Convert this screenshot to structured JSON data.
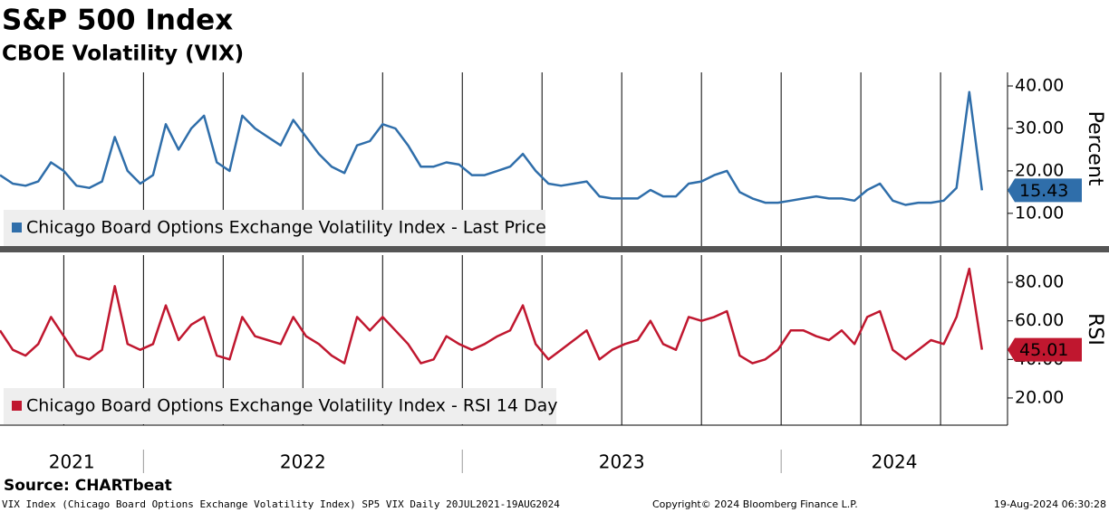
{
  "header": {
    "title": "S&P 500 Index",
    "subtitle": "CBOE Volatility (VIX)"
  },
  "chart_data": [
    {
      "type": "line",
      "y_label": "Percent",
      "grid": true,
      "xlim": [
        2021.55,
        2024.71
      ],
      "ylim": [
        2.3,
        43.2
      ],
      "yticks": [
        {
          "value": 10,
          "label": "10.00"
        },
        {
          "value": 20,
          "label": "20.00"
        },
        {
          "value": 30,
          "label": "30.00"
        },
        {
          "value": 40,
          "label": "40.00"
        }
      ],
      "x": [
        2021.55,
        2021.59,
        2021.63,
        2021.67,
        2021.71,
        2021.75,
        2021.79,
        2021.83,
        2021.87,
        2021.91,
        2021.95,
        2021.99,
        2022.03,
        2022.07,
        2022.11,
        2022.15,
        2022.19,
        2022.23,
        2022.27,
        2022.31,
        2022.35,
        2022.39,
        2022.43,
        2022.47,
        2022.51,
        2022.55,
        2022.59,
        2022.63,
        2022.67,
        2022.71,
        2022.75,
        2022.79,
        2022.83,
        2022.87,
        2022.91,
        2022.95,
        2022.99,
        2023.03,
        2023.07,
        2023.11,
        2023.15,
        2023.19,
        2023.23,
        2023.27,
        2023.31,
        2023.35,
        2023.39,
        2023.43,
        2023.47,
        2023.51,
        2023.55,
        2023.59,
        2023.63,
        2023.67,
        2023.71,
        2023.75,
        2023.79,
        2023.83,
        2023.87,
        2023.91,
        2023.95,
        2023.99,
        2024.03,
        2024.07,
        2024.11,
        2024.15,
        2024.19,
        2024.23,
        2024.27,
        2024.31,
        2024.35,
        2024.39,
        2024.43,
        2024.47,
        2024.51,
        2024.55,
        2024.59,
        2024.63
      ],
      "series": [
        {
          "name": "Chicago Board Options Exchange Volatility Index - Last Price",
          "color": "#2f6eaa",
          "values": [
            19,
            17,
            16.5,
            17.5,
            22,
            20,
            16.5,
            16,
            17.5,
            28,
            20,
            17,
            19,
            31,
            25,
            30,
            33,
            22,
            20,
            33,
            30,
            28,
            26,
            32,
            28,
            24,
            21,
            19.5,
            26,
            27,
            31,
            30,
            26,
            21,
            21,
            22,
            21.5,
            19,
            19,
            20,
            21,
            24,
            20,
            17,
            16.5,
            17,
            17.5,
            14,
            13.5,
            13.5,
            13.5,
            15.5,
            14,
            14,
            17,
            17.5,
            19,
            20,
            15,
            13.5,
            12.5,
            12.5,
            13,
            13.5,
            14,
            13.5,
            13.5,
            13,
            15.5,
            17,
            13,
            12,
            12.5,
            12.5,
            13,
            16,
            38.57,
            15.43
          ]
        }
      ]
    },
    {
      "type": "line",
      "y_label": "RSI",
      "grid": true,
      "xlim": [
        2021.55,
        2024.71
      ],
      "xticks": [
        2021,
        2022,
        2023,
        2024
      ],
      "ylim": [
        5.9,
        94.1
      ],
      "yticks": [
        {
          "value": 20,
          "label": "20.00"
        },
        {
          "value": 40,
          "label": "40.00"
        },
        {
          "value": 60,
          "label": "60.00"
        },
        {
          "value": 80,
          "label": "80.00"
        }
      ],
      "x": [
        2021.55,
        2021.59,
        2021.63,
        2021.67,
        2021.71,
        2021.75,
        2021.79,
        2021.83,
        2021.87,
        2021.91,
        2021.95,
        2021.99,
        2022.03,
        2022.07,
        2022.11,
        2022.15,
        2022.19,
        2022.23,
        2022.27,
        2022.31,
        2022.35,
        2022.39,
        2022.43,
        2022.47,
        2022.51,
        2022.55,
        2022.59,
        2022.63,
        2022.67,
        2022.71,
        2022.75,
        2022.79,
        2022.83,
        2022.87,
        2022.91,
        2022.95,
        2022.99,
        2023.03,
        2023.07,
        2023.11,
        2023.15,
        2023.19,
        2023.23,
        2023.27,
        2023.31,
        2023.35,
        2023.39,
        2023.43,
        2023.47,
        2023.51,
        2023.55,
        2023.59,
        2023.63,
        2023.67,
        2023.71,
        2023.75,
        2023.79,
        2023.83,
        2023.87,
        2023.91,
        2023.95,
        2023.99,
        2024.03,
        2024.07,
        2024.11,
        2024.15,
        2024.19,
        2024.23,
        2024.27,
        2024.31,
        2024.35,
        2024.39,
        2024.43,
        2024.47,
        2024.51,
        2024.55,
        2024.59,
        2024.63
      ],
      "series": [
        {
          "name": "Chicago Board Options Exchange Volatility Index - RSI 14 Day",
          "color": "#c0172f",
          "values": [
            55,
            45,
            42,
            48,
            62,
            52,
            42,
            40,
            45,
            78,
            48,
            45,
            48,
            68,
            50,
            58,
            62,
            42,
            40,
            62,
            52,
            50,
            48,
            62,
            52,
            48,
            42,
            38,
            62,
            55,
            62,
            55,
            48,
            38,
            40,
            52,
            48,
            45,
            48,
            52,
            55,
            68,
            48,
            40,
            45,
            50,
            55,
            40,
            45,
            48,
            50,
            60,
            48,
            45,
            62,
            60,
            62,
            65,
            42,
            38,
            40,
            45,
            55,
            55,
            52,
            50,
            55,
            48,
            62,
            65,
            45,
            40,
            45,
            50,
            48,
            62,
            87,
            45.01
          ]
        }
      ]
    }
  ],
  "footer": {
    "source": "Source: CHARTbeat",
    "description": "VIX Index (Chicago Board Options Exchange Volatility Index) SP5 VIX  Daily 20JUL2021-19AUG2024",
    "copyright": "Copyright© 2024 Bloomberg Finance L.P.",
    "timestamp": "19-Aug-2024 06:30:28"
  }
}
